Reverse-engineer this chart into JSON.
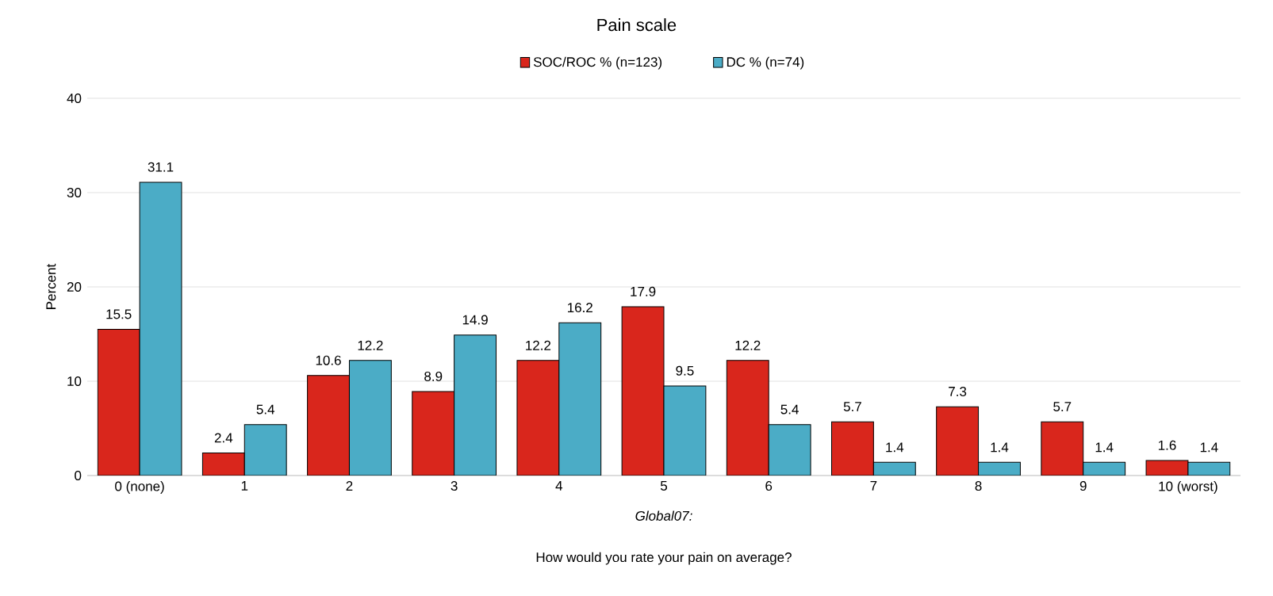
{
  "chart_data": {
    "type": "bar",
    "title": "Pain scale",
    "xlabel": "How would you rate your pain on average?",
    "ylabel": "Percent",
    "annotations": [
      "Global07:"
    ],
    "categories": [
      "0 (none)",
      "1",
      "2",
      "3",
      "4",
      "5",
      "6",
      "7",
      "8",
      "9",
      "10 (worst)"
    ],
    "series": [
      {
        "name": "SOC/ROC % (n=123)",
        "color": "#d9261c",
        "values": [
          15.5,
          2.4,
          10.6,
          8.9,
          12.2,
          17.9,
          12.2,
          5.7,
          7.3,
          5.7,
          1.6
        ]
      },
      {
        "name": "DC % (n=74)",
        "color": "#4bacc6",
        "values": [
          31.1,
          5.4,
          12.2,
          14.9,
          16.2,
          9.5,
          5.4,
          1.4,
          1.4,
          1.4,
          1.4
        ]
      }
    ],
    "ylim": [
      0,
      40
    ],
    "yticks": [
      0,
      10,
      20,
      30,
      40
    ],
    "grid": "y",
    "legend": "top",
    "data_labels": true
  }
}
